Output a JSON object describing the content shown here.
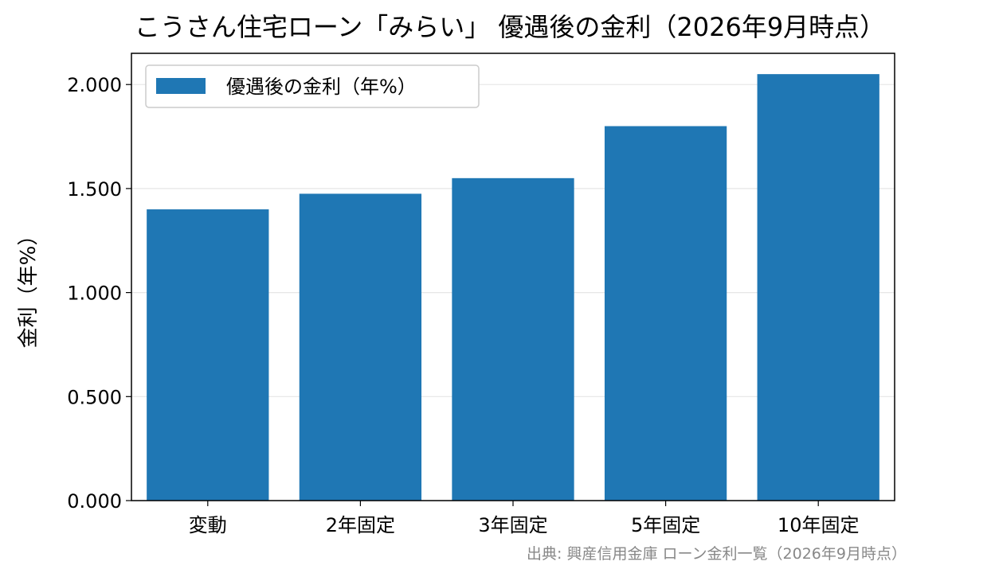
{
  "chart_data": {
    "type": "bar",
    "title": "こうさん住宅ローン「みらい」 優遇後の金利（2026年9月時点）",
    "categories": [
      "変動",
      "2年固定",
      "3年固定",
      "5年固定",
      "10年固定"
    ],
    "series": [
      {
        "name": "優遇後の金利（年%）",
        "values": [
          1.4,
          1.475,
          1.55,
          1.8,
          2.05
        ],
        "color": "#1f77b4"
      }
    ],
    "xlabel": "",
    "ylabel": "金利（年%）",
    "ylim": [
      0,
      2.15
    ],
    "yticks": [
      "0.000",
      "0.500",
      "1.000",
      "1.500",
      "2.000"
    ],
    "ytick_values": [
      0,
      0.5,
      1.0,
      1.5,
      2.0
    ],
    "grid": "horizontal",
    "legend_position": "top-left",
    "source": "出典: 興産信用金庫 ローン金利一覧（2026年9月時点）"
  }
}
